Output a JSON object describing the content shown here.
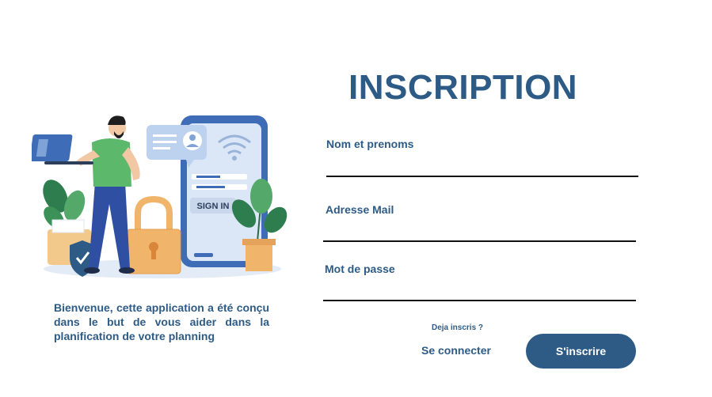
{
  "form": {
    "title": "INSCRIPTION",
    "fields": [
      {
        "label": "Nom et prenoms",
        "value": ""
      },
      {
        "label": "Adresse Mail",
        "value": ""
      },
      {
        "label": "Mot de passe",
        "value": ""
      }
    ],
    "already_registered": "Deja inscris ?",
    "login_link": "Se connecter",
    "submit_label": "S'inscrire"
  },
  "welcome": {
    "text": "Bienvenue, cette application a été conçu dans le but de vous aider dans la planification de votre planning"
  },
  "illustration": {
    "phone_button_label": "SIGN IN",
    "icons": [
      "laptop-icon",
      "user-card-icon",
      "wifi-icon",
      "padlock-icon",
      "shield-check-icon",
      "plant-icon"
    ]
  },
  "colors": {
    "primary": "#2d5b85",
    "accent_green": "#5cb86b",
    "padlock": "#f0b46a",
    "phone": "#3f6cb7"
  }
}
